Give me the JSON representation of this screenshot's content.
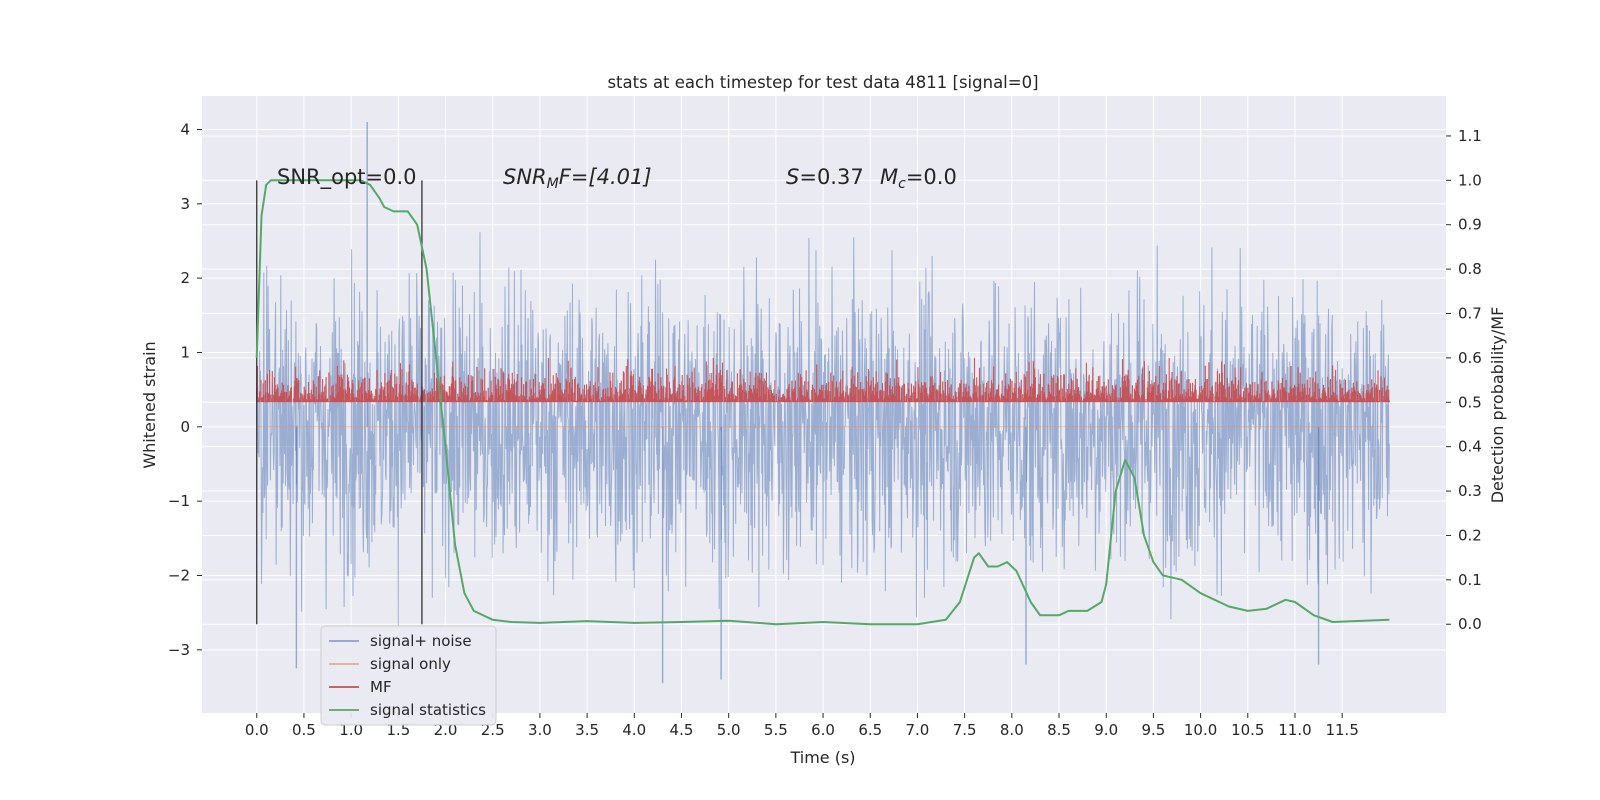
{
  "chart_data": {
    "type": "line",
    "title": "stats at each timestep for test data 4811 [signal=0]",
    "xlabel": "Time (s)",
    "ylabel": "Whitened strain",
    "ylabel_right": "Detection probability/MF",
    "xlim": [
      -0.58,
      12.6
    ],
    "ylim": [
      -3.85,
      4.45
    ],
    "ylim_right": [
      -0.2,
      1.19
    ],
    "grid": true,
    "x_ticks": [
      "0.0",
      "0.5",
      "1.0",
      "1.5",
      "2.0",
      "2.5",
      "3.0",
      "3.5",
      "4.0",
      "4.5",
      "5.0",
      "5.5",
      "6.0",
      "6.5",
      "7.0",
      "7.5",
      "8.0",
      "8.5",
      "9.0",
      "9.5",
      "10.0",
      "10.5",
      "11.0",
      "11.5"
    ],
    "y_ticks": [
      "−3",
      "−2",
      "−1",
      "0",
      "1",
      "2",
      "3",
      "4"
    ],
    "y_ticks_right": [
      "0.0",
      "0.1",
      "0.2",
      "0.3",
      "0.4",
      "0.5",
      "0.6",
      "0.7",
      "0.8",
      "0.9",
      "1.0",
      "1.1"
    ],
    "annotations": {
      "snr_opt": "SNR_opt=0.0",
      "snr_mf_prefix": "SNR",
      "snr_mf_sub": "M",
      "snr_mf_suffix": "F=[4.01]",
      "s_prefix": "S",
      "s_value": "=0.37",
      "mc_prefix": "M",
      "mc_sub": "c",
      "mc_value": "=0.0"
    },
    "vertical_markers": [
      0.0,
      1.75
    ],
    "legend_position": "lower left",
    "series": [
      {
        "name": "signal+ noise",
        "color": "#4c72b0",
        "description_level": "white noise, amplitude approx ±1 sigma",
        "x_range": [
          0.0,
          12.0
        ],
        "peak_values": [
          [
            1.17,
            4.1
          ],
          [
            0.42,
            -3.25
          ],
          [
            4.3,
            -3.45
          ],
          [
            4.92,
            -3.4
          ],
          [
            8.15,
            -3.2
          ],
          [
            11.25,
            -3.2
          ]
        ]
      },
      {
        "name": "signal only",
        "color": "#dd8452",
        "values_constant": 0.0
      },
      {
        "name": "MF",
        "color": "#c44e52",
        "axis": "right",
        "band": [
          0.5,
          0.6
        ],
        "x_range": [
          0.0,
          12.0
        ]
      },
      {
        "name": "signal statistics",
        "color": "#55a868",
        "axis": "right",
        "x": [
          0.0,
          0.05,
          0.1,
          0.15,
          0.25,
          0.5,
          1.0,
          1.1,
          1.2,
          1.3,
          1.35,
          1.45,
          1.6,
          1.7,
          1.8,
          1.9,
          2.0,
          2.1,
          2.2,
          2.3,
          2.5,
          2.7,
          3.0,
          3.5,
          4.0,
          4.5,
          5.0,
          5.5,
          6.0,
          6.5,
          7.0,
          7.3,
          7.45,
          7.6,
          7.65,
          7.75,
          7.85,
          7.95,
          8.05,
          8.2,
          8.3,
          8.5,
          8.6,
          8.8,
          8.95,
          9.0,
          9.1,
          9.2,
          9.3,
          9.4,
          9.5,
          9.6,
          9.8,
          10.0,
          10.3,
          10.5,
          10.7,
          10.9,
          11.0,
          11.2,
          11.4,
          12.0
        ],
        "values": [
          0.6,
          0.92,
          0.99,
          1.0,
          1.0,
          1.0,
          1.0,
          1.0,
          0.99,
          0.96,
          0.94,
          0.93,
          0.93,
          0.9,
          0.8,
          0.6,
          0.4,
          0.18,
          0.07,
          0.03,
          0.01,
          0.005,
          0.003,
          0.007,
          0.003,
          0.005,
          0.008,
          0.0,
          0.005,
          0.0,
          0.0,
          0.01,
          0.05,
          0.15,
          0.16,
          0.13,
          0.13,
          0.14,
          0.12,
          0.05,
          0.02,
          0.02,
          0.03,
          0.03,
          0.05,
          0.09,
          0.3,
          0.37,
          0.33,
          0.2,
          0.14,
          0.11,
          0.1,
          0.07,
          0.04,
          0.03,
          0.035,
          0.055,
          0.05,
          0.02,
          0.005,
          0.01
        ]
      }
    ]
  }
}
